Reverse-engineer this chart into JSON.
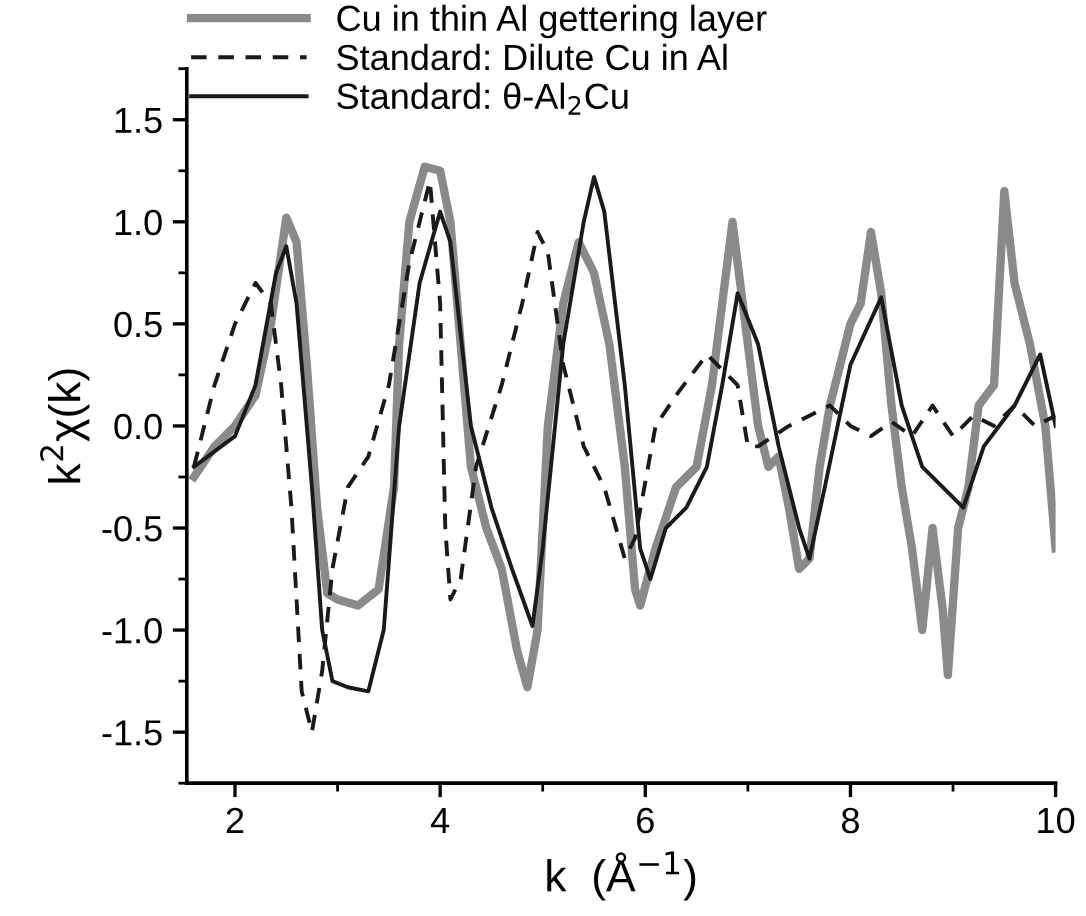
{
  "chart_data": {
    "type": "line",
    "xlabel": "k  (Å$^{−1}$)",
    "ylabel": "k$^{2}$χ(k)",
    "xlim": [
      1.53,
      10
    ],
    "ylim": [
      -1.75,
      1.75
    ],
    "xticks": [
      2,
      4,
      6,
      8,
      10
    ],
    "yticks": [
      -1.5,
      {
        "value": -1,
        "label": "-1.0"
      },
      -0.5,
      {
        "value": 0,
        "label": "0.0"
      },
      0.5,
      {
        "value": 1,
        "label": "1.0"
      },
      1.5
    ],
    "legend": "top left",
    "grid": false,
    "series": [
      {
        "name": "Cu in thin Al gettering layer",
        "color": "#8a8a8a",
        "line_style": "solid",
        "x": [
          1.6,
          1.8,
          2.0,
          2.2,
          2.35,
          2.5,
          2.6,
          2.7,
          2.8,
          2.9,
          3.0,
          3.2,
          3.4,
          3.55,
          3.6,
          3.7,
          3.85,
          4.0,
          4.1,
          4.2,
          4.3,
          4.45,
          4.6,
          4.75,
          4.85,
          4.95,
          5.05,
          5.2,
          5.35,
          5.5,
          5.65,
          5.8,
          5.9,
          5.95,
          6.1,
          6.3,
          6.5,
          6.65,
          6.75,
          6.85,
          6.95,
          7.1,
          7.2,
          7.3,
          7.4,
          7.5,
          7.6,
          7.7,
          7.8,
          7.9,
          8.0,
          8.1,
          8.2,
          8.3,
          8.4,
          8.5,
          8.6,
          8.7,
          8.8,
          8.9,
          8.95,
          9.05,
          9.15,
          9.25,
          9.4,
          9.5,
          9.6,
          9.75,
          9.9,
          10.0
        ],
        "values": [
          -0.25,
          -0.1,
          0.0,
          0.15,
          0.5,
          1.02,
          0.9,
          0.3,
          -0.4,
          -0.82,
          -0.85,
          -0.88,
          -0.8,
          -0.3,
          0.4,
          1.0,
          1.27,
          1.25,
          1.0,
          0.4,
          -0.2,
          -0.5,
          -0.7,
          -1.1,
          -1.28,
          -1.0,
          0.0,
          0.6,
          0.9,
          0.75,
          0.4,
          -0.2,
          -0.8,
          -0.88,
          -0.6,
          -0.3,
          -0.2,
          0.2,
          0.6,
          1.0,
          0.6,
          0.0,
          -0.2,
          -0.15,
          -0.4,
          -0.7,
          -0.65,
          -0.2,
          0.1,
          0.3,
          0.5,
          0.6,
          0.95,
          0.65,
          0.1,
          -0.3,
          -0.6,
          -1.0,
          -0.5,
          -0.9,
          -1.22,
          -0.5,
          -0.3,
          0.1,
          0.2,
          1.15,
          0.7,
          0.4,
          0.0,
          -0.6
        ]
      },
      {
        "name": "Standard: Dilute Cu in Al",
        "color": "#1a1a1a",
        "line_style": "dashed",
        "x": [
          1.6,
          1.8,
          2.0,
          2.2,
          2.35,
          2.45,
          2.55,
          2.65,
          2.75,
          2.85,
          2.95,
          3.1,
          3.3,
          3.5,
          3.7,
          3.9,
          4.0,
          4.05,
          4.1,
          4.2,
          4.35,
          4.6,
          4.8,
          4.95,
          5.05,
          5.2,
          5.4,
          5.6,
          5.8,
          5.9,
          6.1,
          6.3,
          6.6,
          6.9,
          7.0,
          7.1,
          7.4,
          7.6,
          7.8,
          8.0,
          8.2,
          8.4,
          8.6,
          8.8,
          9.0,
          9.2,
          9.4,
          9.6,
          9.8,
          10.0
        ],
        "values": [
          -0.2,
          0.2,
          0.5,
          0.7,
          0.6,
          0.2,
          -0.4,
          -1.3,
          -1.5,
          -1.2,
          -0.7,
          -0.3,
          -0.15,
          0.2,
          0.8,
          1.2,
          0.6,
          -0.5,
          -0.85,
          -0.75,
          -0.2,
          0.2,
          0.6,
          0.95,
          0.85,
          0.3,
          -0.1,
          -0.3,
          -0.65,
          -0.55,
          0.0,
          0.15,
          0.35,
          0.2,
          -0.1,
          -0.1,
          0.0,
          0.05,
          0.1,
          0.0,
          -0.05,
          0.02,
          -0.05,
          0.1,
          -0.05,
          0.05,
          0.0,
          0.1,
          0.0,
          0.05
        ]
      },
      {
        "name": "Standard: θ-Al$_{2}$Cu",
        "color": "#1a1a1a",
        "line_style": "solid",
        "x": [
          1.6,
          2.0,
          2.2,
          2.4,
          2.5,
          2.6,
          2.75,
          2.85,
          2.95,
          3.1,
          3.3,
          3.45,
          3.6,
          3.8,
          4.0,
          4.1,
          4.3,
          4.5,
          4.7,
          4.9,
          5.0,
          5.2,
          5.4,
          5.5,
          5.6,
          5.8,
          5.95,
          6.05,
          6.2,
          6.4,
          6.6,
          6.75,
          6.9,
          7.1,
          7.3,
          7.5,
          7.6,
          7.75,
          8.0,
          8.3,
          8.5,
          8.7,
          9.0,
          9.1,
          9.3,
          9.6,
          9.85,
          10.0
        ],
        "values": [
          -0.2,
          -0.05,
          0.2,
          0.75,
          0.88,
          0.6,
          -0.3,
          -1.0,
          -1.25,
          -1.28,
          -1.3,
          -1.0,
          0.0,
          0.7,
          1.05,
          0.9,
          0.0,
          -0.4,
          -0.7,
          -0.98,
          -0.6,
          0.4,
          1.0,
          1.22,
          1.05,
          0.2,
          -0.6,
          -0.75,
          -0.5,
          -0.4,
          -0.2,
          0.2,
          0.65,
          0.4,
          -0.1,
          -0.5,
          -0.65,
          -0.3,
          0.3,
          0.63,
          0.1,
          -0.2,
          -0.35,
          -0.4,
          -0.1,
          0.1,
          0.35,
          0.0
        ]
      }
    ]
  }
}
